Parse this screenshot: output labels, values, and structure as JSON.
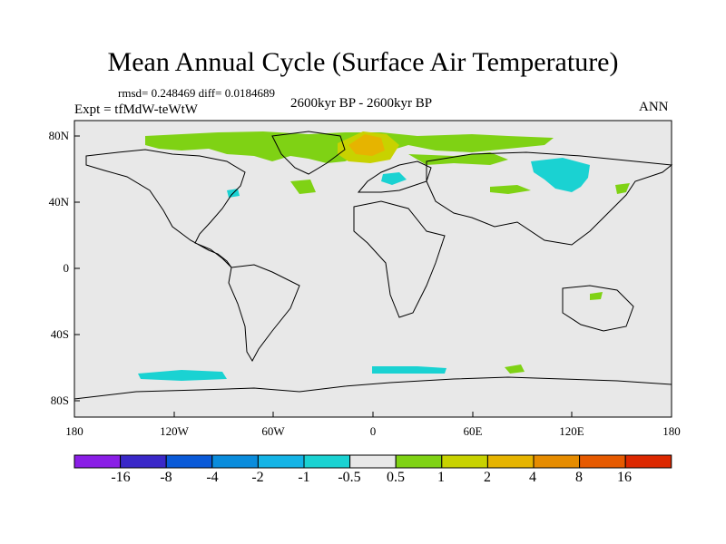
{
  "title": "Mean Annual Cycle (Surface Air Temperature)",
  "stats": "rmsd= 0.248469  diff= 0.0184689",
  "experiment": "Expt = tfMdW-teWtW",
  "period": "2600kyr BP - 2600kyr BP",
  "season": "ANN",
  "axes": {
    "lat_labels": [
      "80N",
      "40N",
      "0",
      "40S",
      "80S"
    ],
    "lon_labels": [
      "180",
      "120W",
      "60W",
      "0",
      "60E",
      "120E",
      "180"
    ]
  },
  "colorbar": {
    "labels": [
      "-16",
      "-8",
      "-4",
      "-2",
      "-1",
      "-0.5",
      "0.5",
      "1",
      "2",
      "4",
      "8",
      "16"
    ],
    "colors": [
      "#8a1ee6",
      "#3a28c8",
      "#0a5ad8",
      "#0a8cdc",
      "#14b4e6",
      "#1ad2d2",
      "#e8e8e8",
      "#7fd214",
      "#c8d200",
      "#e6b400",
      "#e68c00",
      "#e65a00",
      "#dc2800"
    ]
  },
  "colors": {
    "background": "#e8e8e8",
    "coast": "#000000"
  }
}
